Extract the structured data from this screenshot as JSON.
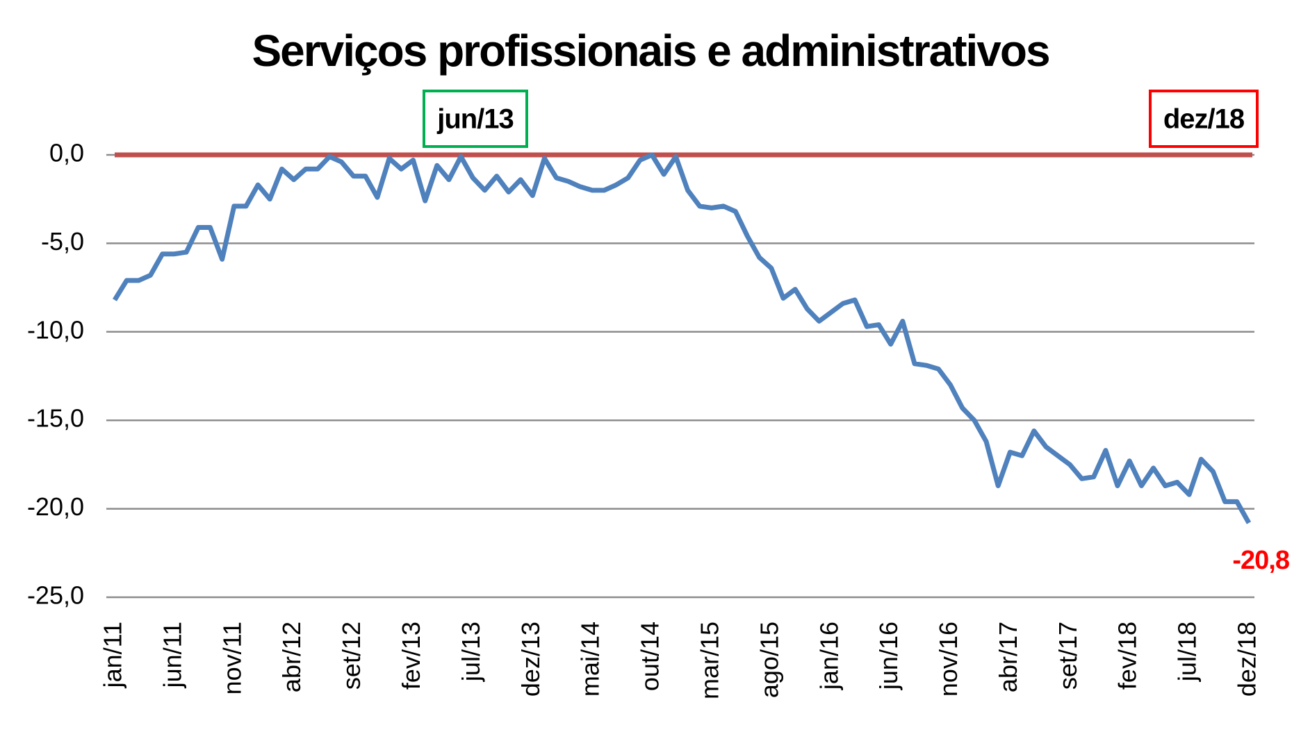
{
  "chart_data": {
    "type": "line",
    "title": "Serviços profissionais e administrativos",
    "categories": [
      "jan/11",
      null,
      null,
      null,
      null,
      "jun/11",
      null,
      null,
      null,
      null,
      "nov/11",
      null,
      null,
      null,
      null,
      "abr/12",
      null,
      null,
      null,
      null,
      "set/12",
      null,
      null,
      null,
      null,
      "fev/13",
      null,
      null,
      null,
      null,
      "jul/13",
      null,
      null,
      null,
      null,
      "dez/13",
      null,
      null,
      null,
      null,
      "mai/14",
      null,
      null,
      null,
      null,
      "out/14",
      null,
      null,
      null,
      null,
      "mar/15",
      null,
      null,
      null,
      null,
      "ago/15",
      null,
      null,
      null,
      null,
      "jan/16",
      null,
      null,
      null,
      null,
      "jun/16",
      null,
      null,
      null,
      null,
      "nov/16",
      null,
      null,
      null,
      null,
      "abr/17",
      null,
      null,
      null,
      null,
      "set/17",
      null,
      null,
      null,
      null,
      "fev/18",
      null,
      null,
      null,
      null,
      "jul/18",
      null,
      null,
      null,
      null,
      "dez/18"
    ],
    "series": [
      {
        "color": "#4f81bd",
        "values": [
          -8.2,
          -7.1,
          -7.1,
          -6.8,
          -5.6,
          -5.6,
          -5.5,
          -4.1,
          -4.1,
          -5.9,
          -2.9,
          -2.9,
          -1.7,
          -2.5,
          -0.8,
          -1.4,
          -0.8,
          -0.8,
          -0.1,
          -0.4,
          -1.2,
          -1.2,
          -2.4,
          -0.2,
          -0.8,
          -0.3,
          -2.6,
          -0.6,
          -1.4,
          -0.1,
          -1.3,
          -2.0,
          -1.2,
          -2.1,
          -1.4,
          -2.3,
          -0.2,
          -1.3,
          -1.5,
          -1.8,
          -2.0,
          -2.0,
          -1.7,
          -1.3,
          -0.3,
          0.0,
          -1.1,
          -0.1,
          -2.0,
          -2.9,
          -3.0,
          -2.9,
          -3.2,
          -4.6,
          -5.8,
          -6.4,
          -8.1,
          -7.6,
          -8.7,
          -9.4,
          -8.9,
          -8.4,
          -8.2,
          -9.7,
          -9.6,
          -10.7,
          -9.4,
          -11.8,
          -11.9,
          -12.1,
          -13.0,
          -14.3,
          -15.0,
          -16.2,
          -18.7,
          -16.8,
          -17.0,
          -15.6,
          -16.5,
          -17.0,
          -17.5,
          -18.3,
          -18.2,
          -16.7,
          -18.7,
          -17.3,
          -18.7,
          -17.7,
          -18.7,
          -18.5,
          -19.2,
          -17.2,
          -17.9,
          -19.6,
          -19.6,
          -20.8
        ],
        "value_labels": [
          null,
          null,
          null,
          null,
          null,
          null,
          null,
          null,
          null,
          null,
          null,
          null,
          null,
          null,
          null,
          null,
          null,
          null,
          null,
          null,
          null,
          null,
          null,
          null,
          null,
          null,
          null,
          null,
          null,
          null,
          null,
          null,
          null,
          null,
          null,
          null,
          null,
          null,
          null,
          null,
          null,
          null,
          null,
          null,
          null,
          null,
          null,
          null,
          null,
          null,
          null,
          null,
          null,
          null,
          null,
          null,
          null,
          null,
          null,
          null,
          null,
          null,
          null,
          null,
          null,
          null,
          null,
          null,
          null,
          null,
          null,
          null,
          null,
          null,
          null,
          null,
          null,
          null,
          null,
          null,
          null,
          null,
          null,
          null,
          null,
          null,
          null,
          null,
          null,
          null,
          null,
          null,
          null,
          null,
          null,
          "-20,8"
        ]
      }
    ],
    "ylim": [
      -25,
      0
    ],
    "yticks": [
      {
        "value": 0,
        "label": "0,0"
      },
      {
        "value": -5,
        "label": "-5,0"
      },
      {
        "value": -10,
        "label": "-10,0"
      },
      {
        "value": -15,
        "label": "-15,0"
      },
      {
        "value": -20,
        "label": "-20,0"
      },
      {
        "value": -25,
        "label": "-25,0"
      }
    ],
    "grid": true,
    "reference_line": {
      "value": 0,
      "color": "#c0504d"
    },
    "highlights": [
      {
        "label": "jun/13",
        "color": "#00b050"
      },
      {
        "label": "dez/18",
        "color": "#ff0000"
      }
    ]
  }
}
